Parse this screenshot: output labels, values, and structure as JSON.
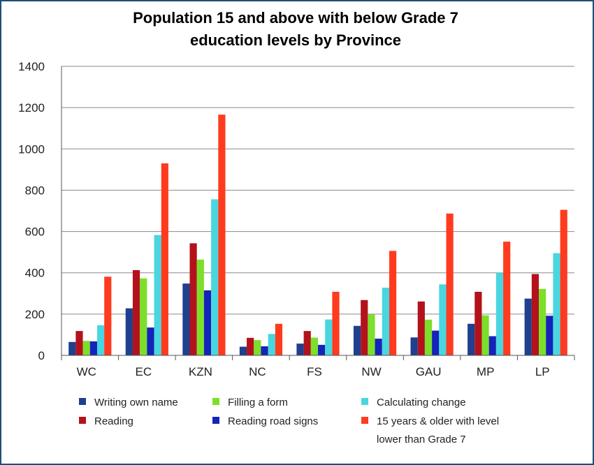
{
  "chart_data": {
    "type": "bar",
    "title_line1": "Population 15 and above with below Grade 7",
    "title_line2": "education levels by Province",
    "categories": [
      "WC",
      "EC",
      "KZN",
      "NC",
      "FS",
      "NW",
      "GAU",
      "MP",
      "LP"
    ],
    "ylim": [
      0,
      1400
    ],
    "yticks": [
      "0",
      "200",
      "400",
      "600",
      "800",
      "1000",
      "1200",
      "1400"
    ],
    "grid": true,
    "legend_position": "bottom",
    "series": [
      {
        "name": "Writing own name",
        "color": "#1f3f8f",
        "values": [
          65,
          228,
          348,
          42,
          57,
          143,
          87,
          153,
          275
        ]
      },
      {
        "name": "Reading",
        "color": "#b3121c",
        "values": [
          118,
          413,
          543,
          85,
          118,
          268,
          261,
          308,
          394
        ]
      },
      {
        "name": "Filling a form",
        "color": "#7cdf2a",
        "values": [
          70,
          373,
          464,
          74,
          86,
          199,
          173,
          194,
          322
        ]
      },
      {
        "name": "Reading road signs",
        "color": "#1424b8",
        "values": [
          68,
          135,
          315,
          44,
          51,
          81,
          120,
          93,
          192
        ]
      },
      {
        "name": "Calculating change",
        "color": "#49d6e0",
        "values": [
          146,
          583,
          756,
          104,
          174,
          328,
          344,
          400,
          495
        ]
      },
      {
        "name": "15 years & older with level lower than Grade 7",
        "color": "#ff3b1f",
        "values": [
          381,
          930,
          1166,
          153,
          308,
          506,
          687,
          551,
          705
        ]
      }
    ],
    "legend_lines": {
      "s5_line1": "15 years & older with level",
      "s5_line2": "lower than Grade 7"
    }
  }
}
